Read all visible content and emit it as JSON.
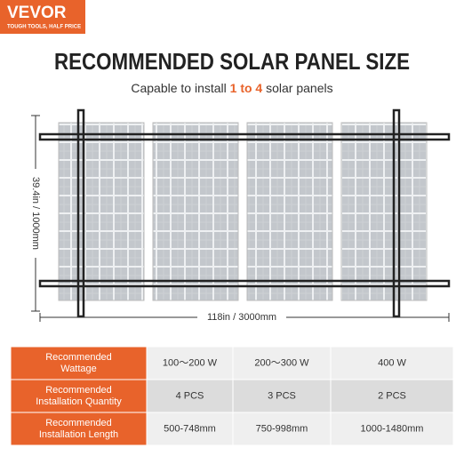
{
  "brand": {
    "name": "VEVOR",
    "tagline": "TOUGH TOOLS, HALF PRICE"
  },
  "title": "RECOMMENDED SOLAR PANEL SIZE",
  "subtitle": {
    "before": "Capable to install ",
    "highlight": "1 to 4",
    "after": " solar panels"
  },
  "dimensions": {
    "height": "39.4in / 1000mm",
    "width": "118in / 3000mm"
  },
  "table": {
    "rows": [
      {
        "header": [
          "Recommended",
          "Wattage"
        ],
        "cells": [
          "100～200 W",
          "200～300 W",
          "400 W"
        ]
      },
      {
        "header": [
          "Recommended",
          "Installation Quantity"
        ],
        "cells": [
          "4 PCS",
          "3 PCS",
          "2 PCS"
        ]
      },
      {
        "header": [
          "Recommended",
          "Installation Length"
        ],
        "cells": [
          "500-748mm",
          "750-998mm",
          "1000-1480mm"
        ]
      }
    ]
  }
}
